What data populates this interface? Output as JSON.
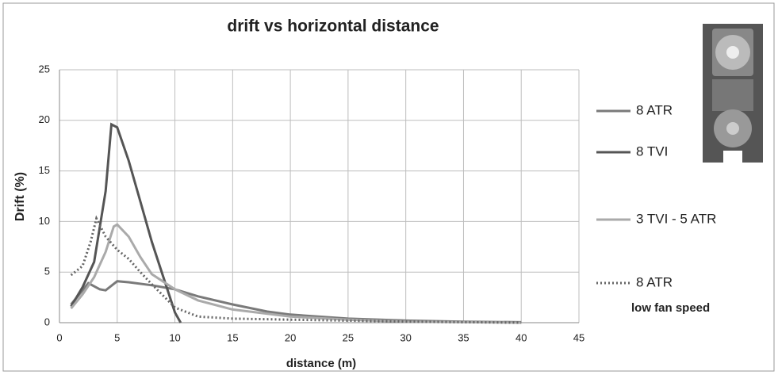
{
  "chart_data": {
    "type": "line",
    "title": "drift vs horizontal distance",
    "x_label": "distance (m)",
    "y_label": "Drift (%)",
    "xlim": [
      0,
      45
    ],
    "xticks": [
      0,
      5,
      10,
      15,
      20,
      25,
      30,
      35,
      40,
      45
    ],
    "ylim": [
      0,
      25
    ],
    "yticks": [
      0,
      5,
      10,
      15,
      20,
      25
    ],
    "grid": true,
    "legend": "right",
    "series": [
      {
        "name": "8 ATR",
        "color": "#7a7a7a",
        "dash": "solid",
        "x": [
          1,
          2.5,
          3.5,
          4,
          5,
          6,
          8,
          10,
          12,
          15,
          18,
          20,
          25,
          30,
          35,
          40
        ],
        "values": [
          1.8,
          3.9,
          3.3,
          3.2,
          4.1,
          4.0,
          3.7,
          3.3,
          2.6,
          1.8,
          1.1,
          0.8,
          0.4,
          0.2,
          0.1,
          0.05
        ]
      },
      {
        "name": "8 TVI",
        "color": "#555555",
        "dash": "solid",
        "x": [
          1,
          2,
          3,
          4,
          4.5,
          5,
          6,
          7,
          8,
          9,
          10,
          10.5
        ],
        "values": [
          1.6,
          3.5,
          6,
          13,
          19.6,
          19.3,
          16,
          12,
          8,
          4.5,
          1,
          0
        ]
      },
      {
        "name": "3 TVI - 5 ATR",
        "color": "#aaaaaa",
        "dash": "solid",
        "x": [
          1,
          2,
          3,
          4,
          4.7,
          5,
          6,
          7,
          8,
          10,
          12,
          15,
          20,
          25,
          30,
          40
        ],
        "values": [
          1.4,
          2.8,
          4.5,
          7,
          9.5,
          9.7,
          8.5,
          6.5,
          4.8,
          3.3,
          2.2,
          1.3,
          0.6,
          0.3,
          0.1,
          0
        ]
      },
      {
        "name": "8 ATR",
        "note": "low fan speed",
        "color": "#666666",
        "dash": "dotted",
        "x": [
          1,
          2,
          2.7,
          3.2,
          4,
          5,
          6,
          7,
          8,
          10,
          12,
          15,
          20,
          30,
          40
        ],
        "values": [
          4.7,
          5.6,
          8,
          10.3,
          8.5,
          7.2,
          6.3,
          5,
          3.8,
          1.5,
          0.6,
          0.4,
          0.3,
          0.1,
          0
        ]
      }
    ]
  }
}
